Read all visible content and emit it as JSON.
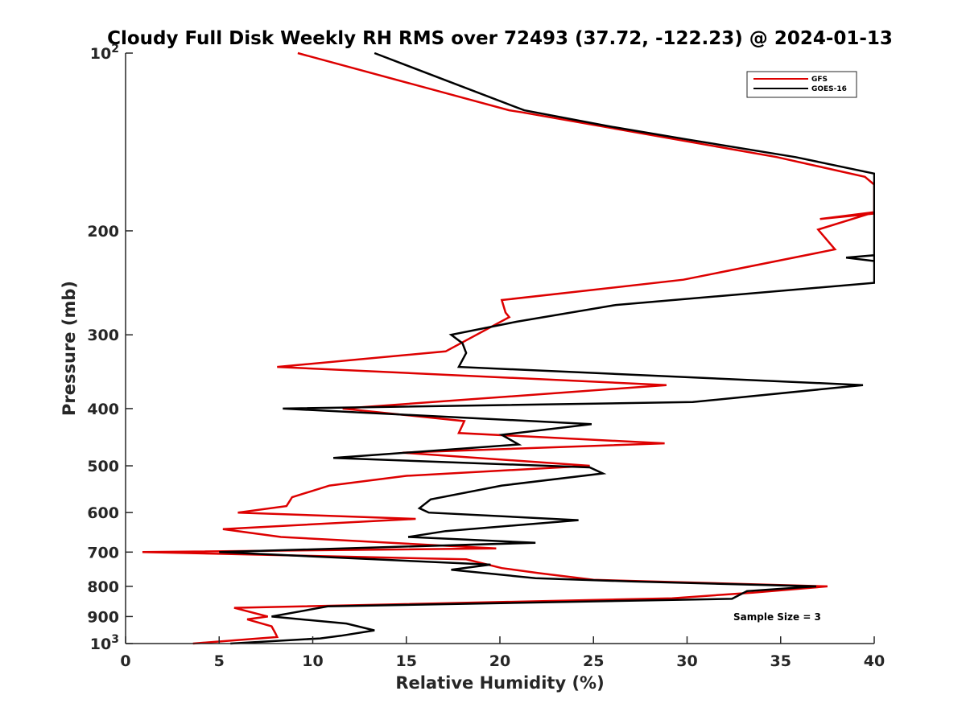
{
  "chart_data": {
    "type": "line",
    "title": "Cloudy Full Disk Weekly RH RMS over 72493 (37.72, -122.23) @ 2024-01-13",
    "xlabel": "Relative Humidity (%)",
    "ylabel": "Pressure (mb)",
    "xlim": [
      0,
      40
    ],
    "ylim": [
      100,
      1000
    ],
    "y_scale": "log",
    "y_reversed": true,
    "x_ticks": [
      "0",
      "5",
      "10",
      "15",
      "20",
      "25",
      "30",
      "35",
      "40"
    ],
    "y_ticks": [
      {
        "value": 100,
        "label": "10",
        "sup": "2"
      },
      {
        "value": 200,
        "label": "200"
      },
      {
        "value": 300,
        "label": "300"
      },
      {
        "value": 400,
        "label": "400"
      },
      {
        "value": 500,
        "label": "500"
      },
      {
        "value": 600,
        "label": "600"
      },
      {
        "value": 700,
        "label": "700"
      },
      {
        "value": 800,
        "label": "800"
      },
      {
        "value": 900,
        "label": "900"
      },
      {
        "value": 1000,
        "label": "10",
        "sup": "3"
      }
    ],
    "legend_position": "top-right",
    "annotation": "Sample Size = 3",
    "series": [
      {
        "name": "GFS",
        "color": "#dd0000",
        "points": [
          [
            9.2,
            100
          ],
          [
            20.5,
            125
          ],
          [
            21.2,
            126
          ],
          [
            34.8,
            150
          ],
          [
            39.5,
            162
          ],
          [
            40,
            167
          ],
          [
            40,
            186
          ],
          [
            40,
            187
          ],
          [
            37.1,
            191
          ],
          [
            40,
            186
          ],
          [
            37,
            199
          ],
          [
            37.9,
            215
          ],
          [
            29.8,
            242
          ],
          [
            20.1,
            262
          ],
          [
            20.3,
            275
          ],
          [
            20.5,
            280
          ],
          [
            17.1,
            320
          ],
          [
            8.1,
            340
          ],
          [
            28.9,
            365
          ],
          [
            11.6,
            400
          ],
          [
            18.1,
            420
          ],
          [
            17.8,
            440
          ],
          [
            28.8,
            458
          ],
          [
            14.8,
            475
          ],
          [
            24.8,
            500
          ],
          [
            15.0,
            520
          ],
          [
            10.9,
            540
          ],
          [
            8.9,
            565
          ],
          [
            8.6,
            585
          ],
          [
            6.0,
            600
          ],
          [
            15.5,
            615
          ],
          [
            5.2,
            640
          ],
          [
            8.3,
            660
          ],
          [
            19.8,
            690
          ],
          [
            0.9,
            700
          ],
          [
            18.2,
            720
          ],
          [
            20.1,
            745
          ],
          [
            22.1,
            760
          ],
          [
            25.0,
            780
          ],
          [
            37.5,
            800
          ],
          [
            33.5,
            820
          ],
          [
            29.2,
            838
          ],
          [
            5.8,
            870
          ],
          [
            7.6,
            900
          ],
          [
            6.5,
            910
          ],
          [
            7.8,
            935
          ],
          [
            8.0,
            960
          ],
          [
            8.1,
            975
          ],
          [
            3.6,
            1000
          ]
        ]
      },
      {
        "name": "GOES-16",
        "color": "#000000",
        "points": [
          [
            13.3,
            100
          ],
          [
            21.3,
            125
          ],
          [
            25.8,
            133
          ],
          [
            30.0,
            140
          ],
          [
            35.8,
            150
          ],
          [
            40,
            160
          ],
          [
            40,
            220
          ],
          [
            38.5,
            222
          ],
          [
            40,
            225
          ],
          [
            40,
            220
          ],
          [
            40,
            245
          ],
          [
            26.2,
            267
          ],
          [
            20.9,
            285
          ],
          [
            17.4,
            300
          ],
          [
            18.0,
            310
          ],
          [
            18.2,
            322
          ],
          [
            17.8,
            340
          ],
          [
            39.4,
            365
          ],
          [
            30.3,
            390
          ],
          [
            8.4,
            400
          ],
          [
            24.9,
            425
          ],
          [
            20.1,
            443
          ],
          [
            21.0,
            460
          ],
          [
            11.1,
            485
          ],
          [
            24.8,
            503
          ],
          [
            25.5,
            515
          ],
          [
            20.1,
            540
          ],
          [
            16.3,
            570
          ],
          [
            15.7,
            590
          ],
          [
            16.2,
            600
          ],
          [
            24.2,
            618
          ],
          [
            17.1,
            645
          ],
          [
            15.1,
            660
          ],
          [
            21.9,
            675
          ],
          [
            5.0,
            700
          ],
          [
            19.5,
            735
          ],
          [
            17.4,
            750
          ],
          [
            21.9,
            775
          ],
          [
            27.0,
            785
          ],
          [
            36.9,
            800
          ],
          [
            33.2,
            815
          ],
          [
            32.4,
            840
          ],
          [
            10.8,
            865
          ],
          [
            7.8,
            900
          ],
          [
            11.8,
            925
          ],
          [
            13.3,
            950
          ],
          [
            11.5,
            970
          ],
          [
            10.4,
            980
          ],
          [
            5.6,
            1000
          ]
        ]
      }
    ]
  }
}
